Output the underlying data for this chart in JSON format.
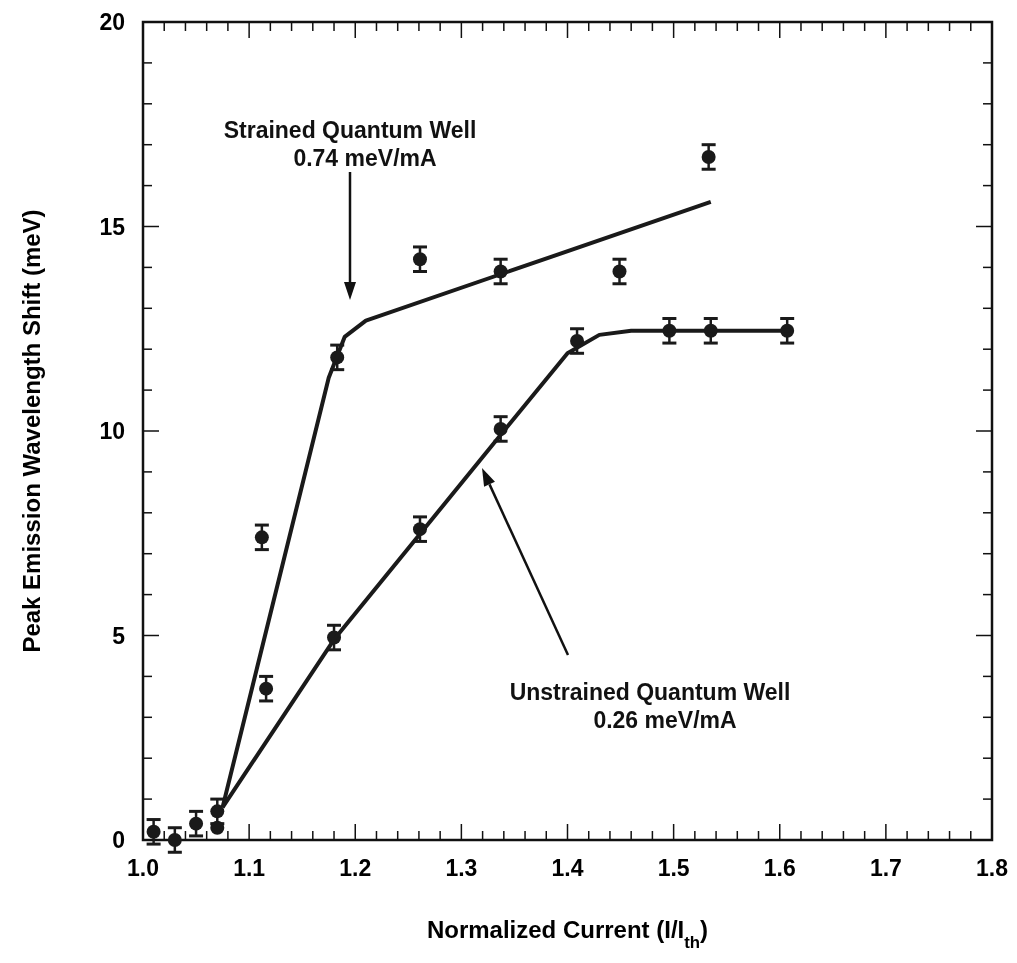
{
  "chart_data": {
    "type": "scatter",
    "xlabel": "Normalized Current (I/I$_{th}$)",
    "ylabel": "Peak Emission Wavelength Shift (meV)",
    "xlim": [
      1.0,
      1.8
    ],
    "ylim": [
      0,
      20
    ],
    "xticks": [
      {
        "value": 1.0,
        "label": "1.0"
      },
      {
        "value": 1.02,
        "label": null
      },
      {
        "value": 1.04,
        "label": null
      },
      {
        "value": 1.06,
        "label": null
      },
      {
        "value": 1.08,
        "label": null
      },
      1.1,
      {
        "value": 1.12,
        "label": null
      },
      {
        "value": 1.14,
        "label": null
      },
      {
        "value": 1.16,
        "label": null
      },
      {
        "value": 1.18,
        "label": null
      },
      1.2,
      {
        "value": 1.22,
        "label": null
      },
      {
        "value": 1.24,
        "label": null
      },
      {
        "value": 1.26,
        "label": null
      },
      {
        "value": 1.28,
        "label": null
      },
      1.3,
      {
        "value": 1.32,
        "label": null
      },
      {
        "value": 1.34,
        "label": null
      },
      {
        "value": 1.36,
        "label": null
      },
      {
        "value": 1.38,
        "label": null
      },
      1.4,
      {
        "value": 1.42,
        "label": null
      },
      {
        "value": 1.44,
        "label": null
      },
      {
        "value": 1.46,
        "label": null
      },
      {
        "value": 1.48,
        "label": null
      },
      1.5,
      {
        "value": 1.52,
        "label": null
      },
      {
        "value": 1.54,
        "label": null
      },
      {
        "value": 1.56,
        "label": null
      },
      {
        "value": 1.58,
        "label": null
      },
      1.6,
      {
        "value": 1.62,
        "label": null
      },
      {
        "value": 1.64,
        "label": null
      },
      {
        "value": 1.66,
        "label": null
      },
      {
        "value": 1.68,
        "label": null
      },
      1.7,
      {
        "value": 1.72,
        "label": null
      },
      {
        "value": 1.74,
        "label": null
      },
      {
        "value": 1.76,
        "label": null
      },
      {
        "value": 1.78,
        "label": null
      },
      1.8
    ],
    "yticks": [
      0,
      {
        "value": 1,
        "label": null
      },
      {
        "value": 2,
        "label": null
      },
      {
        "value": 3,
        "label": null
      },
      {
        "value": 4,
        "label": null
      },
      5,
      {
        "value": 6,
        "label": null
      },
      {
        "value": 7,
        "label": null
      },
      {
        "value": 8,
        "label": null
      },
      {
        "value": 9,
        "label": null
      },
      10,
      {
        "value": 11,
        "label": null
      },
      {
        "value": 12,
        "label": null
      },
      {
        "value": 13,
        "label": null
      },
      {
        "value": 14,
        "label": null
      },
      15,
      {
        "value": 16,
        "label": null
      },
      {
        "value": 17,
        "label": null
      },
      {
        "value": 18,
        "label": null
      },
      {
        "value": 19,
        "label": null
      },
      20
    ],
    "grid": false,
    "marker": "circle",
    "series": [
      {
        "color": "#1a1a1a",
        "x": [
          1.01,
          1.03,
          1.05,
          1.07,
          1.07,
          1.116,
          1.18,
          1.261,
          1.337,
          1.409,
          1.496,
          1.535,
          1.607
        ],
        "values": [
          0.2,
          0,
          0.4,
          0.7,
          0.3,
          3.7,
          4.95,
          7.6,
          10.05,
          12.2,
          12.45,
          12.45,
          12.45
        ],
        "errors": [
          0.3,
          0.3,
          0.3,
          0.3,
          null,
          0.3,
          0.3,
          0.3,
          0.3,
          0.3,
          0.3,
          0.3,
          0.3
        ]
      },
      {
        "color": "#1a1a1a",
        "x": [
          1.112,
          1.183,
          1.261,
          1.337,
          1.449,
          1.533
        ],
        "values": [
          7.4,
          11.8,
          14.2,
          13.9,
          13.9,
          16.7
        ],
        "errors": [
          0.3,
          0.3,
          0.3,
          0.3,
          0.3,
          0.3
        ]
      },
      {
        "type": "line",
        "marker": "none",
        "color": "#1a1a1a",
        "x": [
          1.075,
          1.18,
          1.34,
          1.4,
          1.43,
          1.46,
          1.61
        ],
        "values": [
          0.8,
          4.9,
          10.0,
          11.9,
          12.35,
          12.45,
          12.45
        ]
      },
      {
        "type": "line",
        "marker": "none",
        "color": "#1a1a1a",
        "x": [
          1.075,
          1.175,
          1.19,
          1.21,
          1.535
        ],
        "values": [
          0.8,
          11.3,
          12.3,
          12.7,
          15.6
        ]
      }
    ],
    "annotations": [
      "Strained Quantum Well\n0.74 meV/mA",
      "Unstrained Quantum Well\n0.26 meV/mA"
    ]
  }
}
